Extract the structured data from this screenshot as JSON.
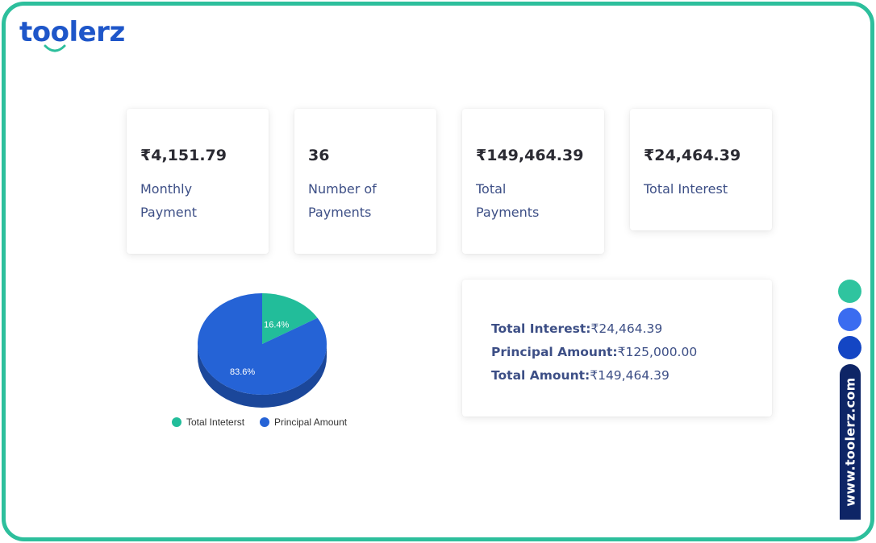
{
  "brand": {
    "name": "toolerz",
    "color": "#1e56c9",
    "frame_color": "#2dbf9c"
  },
  "stats": [
    {
      "value": "₹4,151.79",
      "label": "Monthly Payment"
    },
    {
      "value": "36",
      "label": "Number of Payments"
    },
    {
      "value": "₹149,464.39",
      "label": "Total Payments"
    },
    {
      "value": "₹24,464.39",
      "label": "Total Interest"
    }
  ],
  "summary": {
    "interest_label": "Total Interest:",
    "interest_value": "₹24,464.39",
    "principal_label": "Principal Amount:",
    "principal_value": "₹125,000.00",
    "total_label": "Total Amount:",
    "total_value": "₹149,464.39"
  },
  "chart_data": {
    "type": "pie",
    "categories": [
      "Total Inteterst",
      "Principal Amount"
    ],
    "values": [
      16.4,
      83.6
    ],
    "data_labels": [
      "16.4%",
      "83.6%"
    ],
    "colors": [
      "#22bd9a",
      "#2563d6"
    ],
    "legend_position": "bottom"
  },
  "side": {
    "dot_colors": [
      "#2fc49f",
      "#3a6cf0",
      "#1446c4"
    ],
    "website": "www.toolerz.com"
  }
}
